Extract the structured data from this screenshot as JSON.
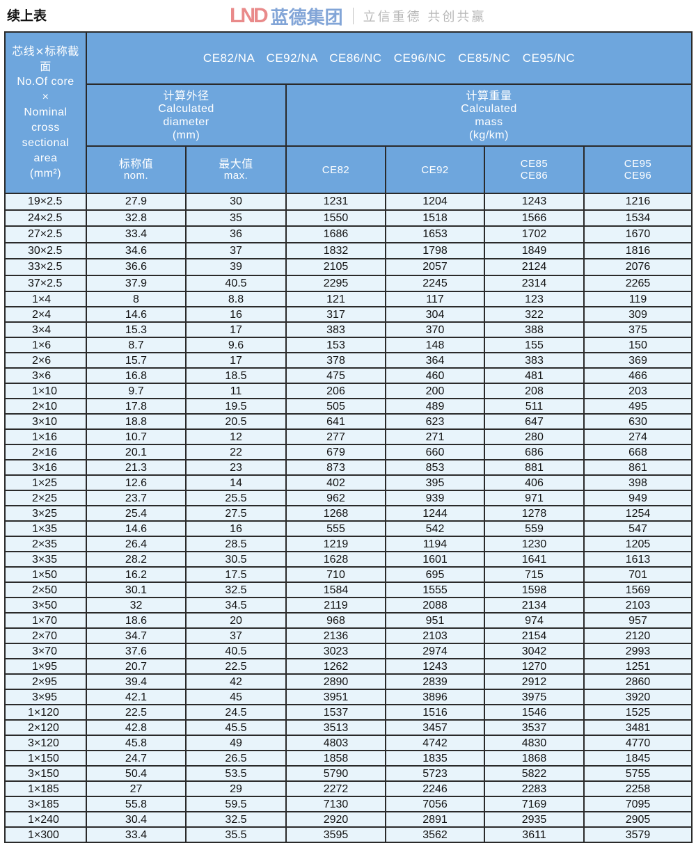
{
  "title": "续上表",
  "header": {
    "core_zh": "芯线×标称截面",
    "core_en1": "No.Of core",
    "core_en2": "×",
    "core_en3": "Nominal cross sectional area",
    "core_unit": "(mm²)",
    "models": "CE82/NA CE92/NA CE86/NC CE96/NC CE85/NC CE95/NC",
    "diameter_zh": "计算外径",
    "diameter_en": "Calculated diameter",
    "diameter_unit": "(mm)",
    "mass_zh": "计算重量",
    "mass_en": "Calculated mass",
    "mass_unit": "(kg/km)",
    "nom_zh": "标称值",
    "nom_en": "nom.",
    "max_zh": "最大值",
    "max_en": "max.",
    "col_ce82": "CE82",
    "col_ce92": "CE92",
    "col_ce85_1": "CE85",
    "col_ce85_2": "CE86",
    "col_ce95_1": "CE95",
    "col_ce95_2": "CE96"
  },
  "watermark": {
    "logo": "LND",
    "name": "蓝德集团",
    "slogan": "立信重德 共创共赢"
  },
  "colors": {
    "header_bg": "#6ea6dd",
    "row_bg": "#e8f4fb",
    "border": "#2a2a2a"
  },
  "rows": [
    [
      "19×2.5",
      "27.9",
      "30",
      "1231",
      "1204",
      "1243",
      "1216"
    ],
    [
      "24×2.5",
      "32.8",
      "35",
      "1550",
      "1518",
      "1566",
      "1534"
    ],
    [
      "27×2.5",
      "33.4",
      "36",
      "1686",
      "1653",
      "1702",
      "1670"
    ],
    [
      "30×2.5",
      "34.6",
      "37",
      "1832",
      "1798",
      "1849",
      "1816"
    ],
    [
      "33×2.5",
      "36.6",
      "39",
      "2105",
      "2057",
      "2124",
      "2076"
    ],
    [
      "37×2.5",
      "37.9",
      "40.5",
      "2295",
      "2245",
      "2314",
      "2265"
    ],
    [
      "1×4",
      "8",
      "8.8",
      "121",
      "117",
      "123",
      "119"
    ],
    [
      "2×4",
      "14.6",
      "16",
      "317",
      "304",
      "322",
      "309"
    ],
    [
      "3×4",
      "15.3",
      "17",
      "383",
      "370",
      "388",
      "375"
    ],
    [
      "1×6",
      "8.7",
      "9.6",
      "153",
      "148",
      "155",
      "150"
    ],
    [
      "2×6",
      "15.7",
      "17",
      "378",
      "364",
      "383",
      "369"
    ],
    [
      "3×6",
      "16.8",
      "18.5",
      "475",
      "460",
      "481",
      "466"
    ],
    [
      "1×10",
      "9.7",
      "11",
      "206",
      "200",
      "208",
      "203"
    ],
    [
      "2×10",
      "17.8",
      "19.5",
      "505",
      "489",
      "511",
      "495"
    ],
    [
      "3×10",
      "18.8",
      "20.5",
      "641",
      "623",
      "647",
      "630"
    ],
    [
      "1×16",
      "10.7",
      "12",
      "277",
      "271",
      "280",
      "274"
    ],
    [
      "2×16",
      "20.1",
      "22",
      "679",
      "660",
      "686",
      "668"
    ],
    [
      "3×16",
      "21.3",
      "23",
      "873",
      "853",
      "881",
      "861"
    ],
    [
      "1×25",
      "12.6",
      "14",
      "402",
      "395",
      "406",
      "398"
    ],
    [
      "2×25",
      "23.7",
      "25.5",
      "962",
      "939",
      "971",
      "949"
    ],
    [
      "3×25",
      "25.4",
      "27.5",
      "1268",
      "1244",
      "1278",
      "1254"
    ],
    [
      "1×35",
      "14.6",
      "16",
      "555",
      "542",
      "559",
      "547"
    ],
    [
      "2×35",
      "26.4",
      "28.5",
      "1219",
      "1194",
      "1230",
      "1205"
    ],
    [
      "3×35",
      "28.2",
      "30.5",
      "1628",
      "1601",
      "1641",
      "1613"
    ],
    [
      "1×50",
      "16.2",
      "17.5",
      "710",
      "695",
      "715",
      "701"
    ],
    [
      "2×50",
      "30.1",
      "32.5",
      "1584",
      "1555",
      "1598",
      "1569"
    ],
    [
      "3×50",
      "32",
      "34.5",
      "2119",
      "2088",
      "2134",
      "2103"
    ],
    [
      "1×70",
      "18.6",
      "20",
      "968",
      "951",
      "974",
      "957"
    ],
    [
      "2×70",
      "34.7",
      "37",
      "2136",
      "2103",
      "2154",
      "2120"
    ],
    [
      "3×70",
      "37.6",
      "40.5",
      "3023",
      "2974",
      "3042",
      "2993"
    ],
    [
      "1×95",
      "20.7",
      "22.5",
      "1262",
      "1243",
      "1270",
      "1251"
    ],
    [
      "2×95",
      "39.4",
      "42",
      "2890",
      "2839",
      "2912",
      "2860"
    ],
    [
      "3×95",
      "42.1",
      "45",
      "3951",
      "3896",
      "3975",
      "3920"
    ],
    [
      "1×120",
      "22.5",
      "24.5",
      "1537",
      "1516",
      "1546",
      "1525"
    ],
    [
      "2×120",
      "42.8",
      "45.5",
      "3513",
      "3457",
      "3537",
      "3481"
    ],
    [
      "3×120",
      "45.8",
      "49",
      "4803",
      "4742",
      "4830",
      "4770"
    ],
    [
      "1×150",
      "24.7",
      "26.5",
      "1858",
      "1835",
      "1868",
      "1845"
    ],
    [
      "3×150",
      "50.4",
      "53.5",
      "5790",
      "5723",
      "5822",
      "5755"
    ],
    [
      "1×185",
      "27",
      "29",
      "2272",
      "2246",
      "2283",
      "2258"
    ],
    [
      "3×185",
      "55.8",
      "59.5",
      "7130",
      "7056",
      "7169",
      "7095"
    ],
    [
      "1×240",
      "30.4",
      "32.5",
      "2920",
      "2891",
      "2935",
      "2905"
    ],
    [
      "1×300",
      "33.4",
      "35.5",
      "3595",
      "3562",
      "3611",
      "3579"
    ]
  ]
}
